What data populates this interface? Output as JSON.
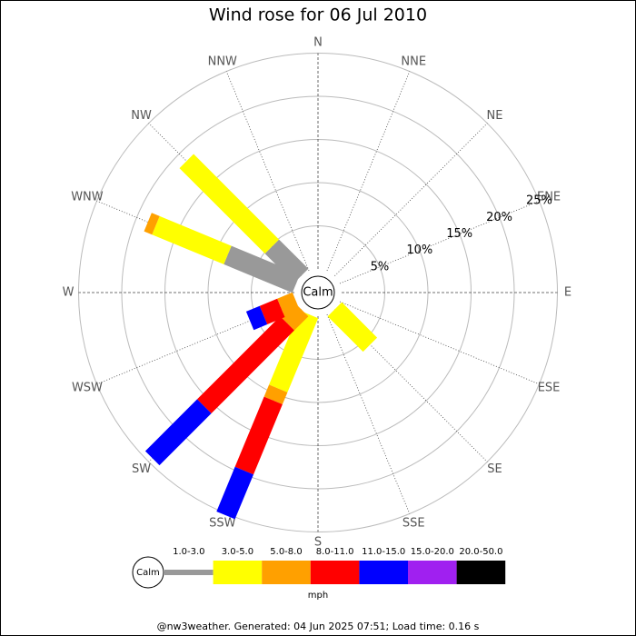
{
  "chart_data": {
    "type": "wind_rose",
    "title": "Wind rose for 06 Jul 2010",
    "directions": [
      "N",
      "NNE",
      "NE",
      "ENE",
      "E",
      "ESE",
      "SE",
      "SSE",
      "S",
      "SSW",
      "SW",
      "WSW",
      "W",
      "WNW",
      "NW",
      "NNW"
    ],
    "center_label": "Calm",
    "rlim": [
      0,
      25
    ],
    "rticks": [
      {
        "value": 5,
        "label": "5%"
      },
      {
        "value": 10,
        "label": "10%"
      },
      {
        "value": 15,
        "label": "15%"
      },
      {
        "value": 20,
        "label": "20%"
      },
      {
        "value": 25,
        "label": "25%"
      }
    ],
    "series": [
      {
        "name": "1.0-3.0",
        "color": "#999999",
        "values": [
          0,
          0,
          0,
          0,
          0,
          0,
          0,
          0,
          0,
          0,
          0,
          0,
          0,
          8.6,
          4.8,
          0
        ]
      },
      {
        "name": "3.0-5.0",
        "color": "#ffff00",
        "values": [
          0,
          0,
          0,
          0,
          0,
          0,
          5.8,
          0,
          0,
          9.3,
          0,
          0,
          0,
          9.0,
          14.0,
          0
        ]
      },
      {
        "name": "5.0-8.0",
        "color": "#ffa000",
        "values": [
          0,
          0,
          0,
          0,
          0,
          0,
          0,
          0,
          0,
          1.5,
          2.3,
          1.9,
          0,
          1.0,
          0,
          0
        ]
      },
      {
        "name": "8.0-11.0",
        "color": "#ff0000",
        "values": [
          0,
          0,
          0,
          0,
          0,
          0,
          0,
          0,
          0,
          8.8,
          13.6,
          2.2,
          0,
          0,
          0,
          0
        ]
      },
      {
        "name": "11.0-15.0",
        "color": "#0000ff",
        "values": [
          0,
          0,
          0,
          0,
          0,
          0,
          0,
          0,
          0,
          5.6,
          8.5,
          1.7,
          0,
          0,
          0,
          0
        ]
      },
      {
        "name": "15.0-20.0",
        "color": "#a020f0",
        "values": [
          0,
          0,
          0,
          0,
          0,
          0,
          0,
          0,
          0,
          0,
          0,
          0,
          0,
          0,
          0,
          0
        ]
      },
      {
        "name": "20.0-50.0",
        "color": "#000000",
        "values": [
          0,
          0,
          0,
          0,
          0,
          0,
          0,
          0,
          0,
          0,
          0,
          0,
          0,
          0,
          0,
          0
        ]
      }
    ],
    "legend_unit": "mph"
  },
  "footer": "@nw3weather. Generated: 04 Jun 2025 07:51; Load time: 0.16 s"
}
